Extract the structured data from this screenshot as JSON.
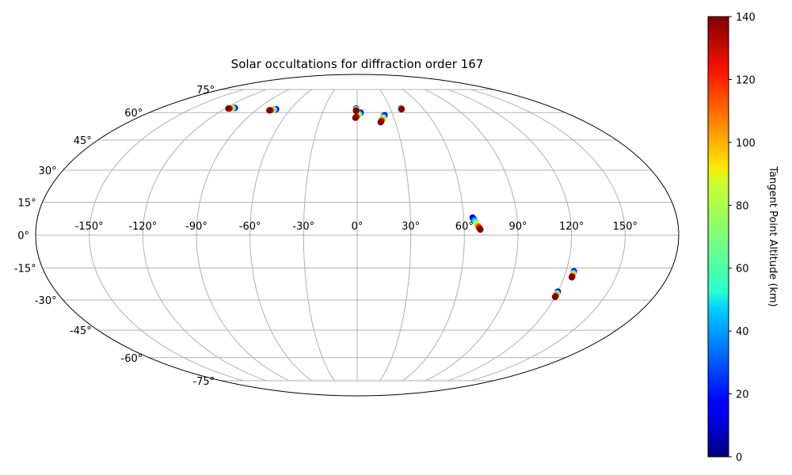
{
  "chart_data": {
    "type": "scatter",
    "projection": "mollweide",
    "title": "Solar occultations for diffraction order 167",
    "xlabel": "",
    "ylabel": "",
    "grid": true,
    "x_ticks": [
      "-150°",
      "-120°",
      "-90°",
      "-60°",
      "-30°",
      "0°",
      "30°",
      "60°",
      "90°",
      "120°",
      "150°"
    ],
    "x_tick_values": [
      -150,
      -120,
      -90,
      -60,
      -30,
      0,
      30,
      60,
      90,
      120,
      150
    ],
    "y_ticks": [
      "75°",
      "60°",
      "45°",
      "30°",
      "15°",
      "0°",
      "-15°",
      "-30°",
      "-45°",
      "-60°",
      "-75°"
    ],
    "y_tick_values": [
      75,
      60,
      45,
      30,
      15,
      0,
      -15,
      -30,
      -45,
      -60,
      -75
    ],
    "colorbar": {
      "label": "Tangent Point Altitude (km)",
      "range": [
        0,
        140
      ],
      "colormap": "jet",
      "ticks": [
        "0",
        "20",
        "40",
        "60",
        "80",
        "100",
        "120",
        "140"
      ],
      "tick_values": [
        0,
        20,
        40,
        60,
        80,
        100,
        120,
        140
      ]
    },
    "occultations": [
      {
        "lon_start": -112,
        "lat_start": 62.8,
        "lon_end": -117,
        "lat_end": 62.4,
        "alt_start": 0,
        "alt_end": 140
      },
      {
        "lon_start": -73,
        "lat_start": 62.0,
        "lon_end": -78,
        "lat_end": 61.3,
        "alt_start": 0,
        "alt_end": 140
      },
      {
        "lon_start": 3,
        "lat_start": 60.0,
        "lon_end": -1.5,
        "lat_end": 57.0,
        "alt_start": 0,
        "alt_end": 140
      },
      {
        "lon_start": -1,
        "lat_start": 62.5,
        "lon_end": -1,
        "lat_end": 61.0,
        "alt_start": 0,
        "alt_end": 140
      },
      {
        "lon_start": 23,
        "lat_start": 58.5,
        "lon_end": 18.5,
        "lat_end": 54.5,
        "alt_start": 0,
        "alt_end": 140
      },
      {
        "lon_start": 40,
        "lat_start": 62.6,
        "lon_end": 40,
        "lat_end": 62.0,
        "alt_start": 0,
        "alt_end": 140
      },
      {
        "lon_start": 65,
        "lat_start": 8.0,
        "lon_end": 69,
        "lat_end": 2.5,
        "alt_start": 0,
        "alt_end": 140
      },
      {
        "lon_start": 124.5,
        "lat_start": -16.5,
        "lon_end": 124.5,
        "lat_end": -19.3,
        "alt_start": 0,
        "alt_end": 140
      },
      {
        "lon_start": 120,
        "lat_start": -26.0,
        "lon_end": 120,
        "lat_end": -28.5,
        "alt_start": 0,
        "alt_end": 140
      }
    ]
  }
}
